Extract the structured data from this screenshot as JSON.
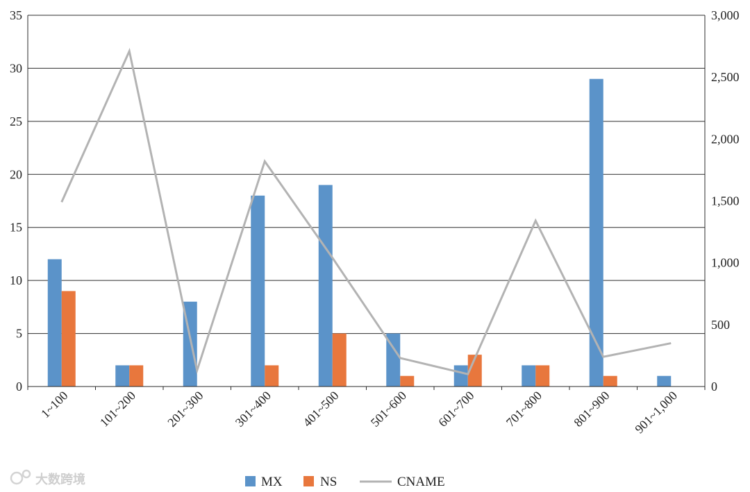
{
  "chart_data": {
    "type": "bar",
    "categories": [
      "1~100",
      "101~200",
      "201~300",
      "301~400",
      "401~500",
      "501~600",
      "601~700",
      "701~800",
      "801~900",
      "901~1,000"
    ],
    "series": [
      {
        "name": "MX",
        "kind": "bar",
        "axis": "left",
        "color": "#5b93c9",
        "values": [
          12,
          2,
          8,
          18,
          19,
          5,
          2,
          2,
          29,
          1
        ]
      },
      {
        "name": "NS",
        "kind": "bar",
        "axis": "left",
        "color": "#e8773d",
        "values": [
          9,
          2,
          0,
          2,
          5,
          1,
          3,
          2,
          1,
          0
        ]
      },
      {
        "name": "CNAME",
        "kind": "line",
        "axis": "right",
        "color": "#b3b3b3",
        "values": [
          1490,
          2710,
          130,
          1820,
          1040,
          230,
          100,
          1340,
          240,
          350
        ]
      }
    ],
    "y_left": {
      "min": 0,
      "max": 35,
      "ticks": [
        "0",
        "5",
        "10",
        "15",
        "20",
        "25",
        "30",
        "35"
      ]
    },
    "y_right": {
      "min": 0,
      "max": 3000,
      "ticks": [
        "0",
        "500",
        "1,000",
        "1,500",
        "2,000",
        "2,500",
        "3,000"
      ]
    },
    "grid": true,
    "legend_position": "bottom-center",
    "title": "",
    "xlabel": "",
    "ylabel": ""
  },
  "watermark": {
    "text": "大数跨境"
  }
}
